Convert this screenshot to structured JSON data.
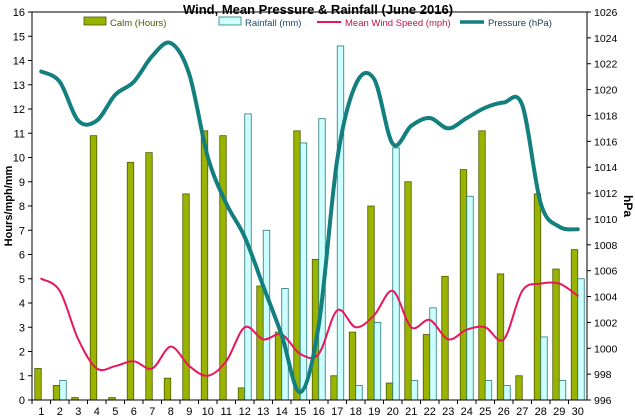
{
  "chart_data": {
    "type": "bar",
    "title": "Wind, Mean Pressure & Rainfall (June 2016)",
    "ylabel_left": "Hours/mph/mm",
    "ylabel_right": "hPa",
    "categories": [
      "1",
      "2",
      "3",
      "4",
      "5",
      "6",
      "7",
      "8",
      "9",
      "10",
      "11",
      "12",
      "13",
      "14",
      "15",
      "16",
      "17",
      "18",
      "19",
      "20",
      "21",
      "22",
      "23",
      "24",
      "25",
      "26",
      "27",
      "28",
      "29",
      "30"
    ],
    "ylim_left": [
      0,
      16
    ],
    "yticks_left": [
      "0",
      "1",
      "2",
      "3",
      "4",
      "5",
      "6",
      "7",
      "8",
      "9",
      "10",
      "11",
      "12",
      "13",
      "14",
      "15",
      "16"
    ],
    "ylim_right": [
      996,
      1026
    ],
    "yticks_right": [
      "996",
      "998",
      "1000",
      "1002",
      "1004",
      "1006",
      "1008",
      "1010",
      "1012",
      "1014",
      "1016",
      "1018",
      "1020",
      "1022",
      "1024",
      "1026"
    ],
    "grid": false,
    "legend_position": "top",
    "series": [
      {
        "name": "Calm (Hours)",
        "type": "bar",
        "axis": "left",
        "color": "#99b300",
        "values": [
          1.3,
          0.6,
          0.1,
          10.9,
          0.1,
          9.8,
          10.2,
          0.9,
          8.5,
          11.1,
          10.9,
          0.5,
          4.7,
          2.8,
          11.1,
          5.8,
          1.0,
          2.8,
          8.0,
          0.7,
          9.0,
          2.7,
          5.1,
          9.5,
          11.1,
          5.2,
          1.0,
          8.5,
          5.4,
          6.2
        ]
      },
      {
        "name": "Rainfall (mm)",
        "type": "bar",
        "axis": "left",
        "color": "#ccffff",
        "values": [
          0,
          0.8,
          0,
          0,
          0,
          0,
          0,
          0,
          0,
          0,
          0,
          11.8,
          7.0,
          4.6,
          10.6,
          11.6,
          14.6,
          0.6,
          3.2,
          10.4,
          0.8,
          3.8,
          0,
          8.4,
          0.8,
          0.6,
          0,
          2.6,
          0.8,
          5.0
        ]
      },
      {
        "name": "Mean Wind Speed (mph)",
        "type": "line",
        "axis": "left",
        "color": "#e8175d",
        "values": [
          5.0,
          4.5,
          2.5,
          1.3,
          1.4,
          1.6,
          1.3,
          2.2,
          1.4,
          1.0,
          1.6,
          3.0,
          2.5,
          2.7,
          1.9,
          1.9,
          3.7,
          3.0,
          3.5,
          4.5,
          3.0,
          3.3,
          2.5,
          2.9,
          3.0,
          2.5,
          4.5,
          4.8,
          4.8,
          4.3
        ]
      },
      {
        "name": "Pressure (hPa)",
        "type": "line",
        "axis": "right",
        "color": "#147f7f",
        "values": [
          1021.4,
          1020.6,
          1017.6,
          1017.6,
          1019.6,
          1020.6,
          1022.6,
          1023.6,
          1021.2,
          1014.8,
          1011.2,
          1008.6,
          1004.8,
          1001.0,
          996.6,
          1001.8,
          1014.6,
          1020.4,
          1020.8,
          1015.8,
          1017.2,
          1017.8,
          1017.0,
          1017.8,
          1018.6,
          1019.0,
          1018.8,
          1011.2,
          1009.4,
          1009.2
        ]
      }
    ]
  }
}
